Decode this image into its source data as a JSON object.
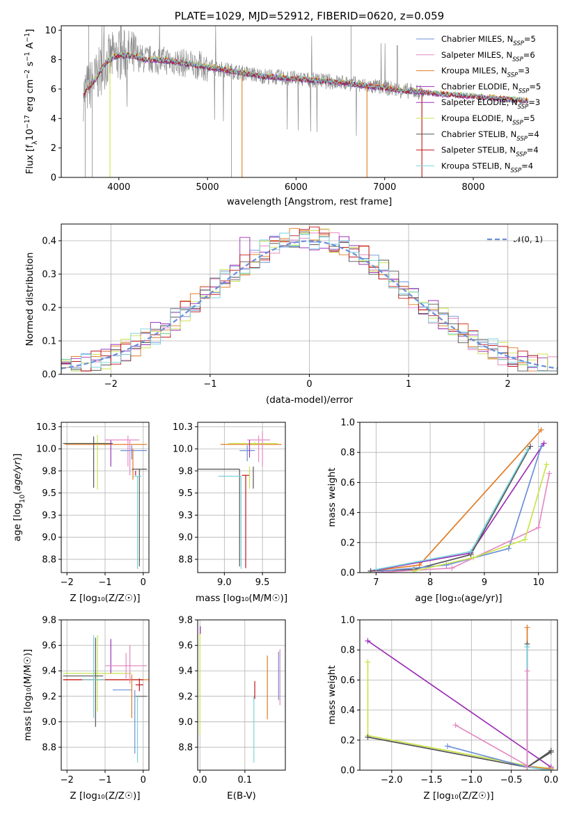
{
  "colors": {
    "chabrier_miles": "#6a8fd8",
    "salpeter_miles": "#e58ac4",
    "kroupa_miles": "#e07b22",
    "chabrier_elodie": "#9b2fb5",
    "salpeter_elodie": "#9b2fb5",
    "kroupa_elodie": "#c9e44a",
    "chabrier_stelib": "#555555",
    "salpeter_stelib": "#c0141c",
    "kroupa_stelib": "#79d2dc",
    "data": "#8a8a8a",
    "normal": "#6a8fd8"
  },
  "chart_data": [
    {
      "type": "line",
      "title": "PLATE=1029, MJD=52912, FIBERID=0620, z=0.059",
      "xlabel": "wavelength [Angstrom, rest frame]",
      "ylabel": "Flux [f_λ10^-17 erg cm^-2 s^-1 A^-1]",
      "xlim": [
        3350,
        8950
      ],
      "ylim": [
        0,
        10.3
      ],
      "xticks": [
        4000,
        5000,
        6000,
        7000,
        8000
      ],
      "yticks": [
        0,
        2,
        4,
        6,
        8,
        10
      ],
      "grid": false,
      "legend_position": "top-right",
      "series": [
        {
          "name": "Chabrier MILES, N_SSP=5",
          "color_key": "chabrier_miles"
        },
        {
          "name": "Salpeter MILES, N_SSP=6",
          "color_key": "salpeter_miles"
        },
        {
          "name": "Kroupa MILES, N_SSP=3",
          "color_key": "kroupa_miles"
        },
        {
          "name": "Chabrier ELODIE, N_SSP=5",
          "color_key": "chabrier_elodie"
        },
        {
          "name": "Salpeter ELODIE, N_SSP=3",
          "color_key": "salpeter_elodie"
        },
        {
          "name": "Kroupa ELODIE, N_SSP=5",
          "color_key": "kroupa_elodie"
        },
        {
          "name": "Chabrier STELIB, N_SSP=4",
          "color_key": "chabrier_stelib"
        },
        {
          "name": "Salpeter STELIB, N_SSP=4",
          "color_key": "salpeter_stelib"
        },
        {
          "name": "Kroupa STELIB, N_SSP=4",
          "color_key": "kroupa_stelib"
        }
      ],
      "continuum": {
        "x": [
          3600,
          3650,
          3700,
          3750,
          3800,
          3850,
          3900,
          3950,
          4000,
          4100,
          4200,
          4300,
          4400,
          4600,
          4800,
          5000,
          5200,
          5400,
          5600,
          5800,
          6000,
          6200,
          6400,
          6600,
          6800,
          7000,
          7200,
          7400,
          7600,
          7800,
          8000,
          8200,
          8400,
          8600
        ],
        "y": [
          5.6,
          6.1,
          6.4,
          6.8,
          7.3,
          7.8,
          8.0,
          8.2,
          8.3,
          8.3,
          8.2,
          8.0,
          8.0,
          7.9,
          7.7,
          7.5,
          7.3,
          7.1,
          6.9,
          6.8,
          6.7,
          6.6,
          6.5,
          6.4,
          6.2,
          6.1,
          5.9,
          5.8,
          5.7,
          5.6,
          5.5,
          5.4,
          5.3,
          5.2
        ]
      },
      "data_spans": [
        3600,
        7450
      ],
      "model_spans": [
        3600,
        8620
      ]
    },
    {
      "type": "line",
      "xlabel": "(data-model)/error",
      "ylabel": "Normed distribution",
      "xlim": [
        -2.5,
        2.5
      ],
      "ylim": [
        0,
        0.45
      ],
      "xticks": [
        -2,
        -1,
        0,
        1,
        2
      ],
      "yticks": [
        0.0,
        0.1,
        0.2,
        0.3,
        0.4
      ],
      "grid": true,
      "legend_position": "top-right",
      "legend": [
        "𝒩(0, 1)"
      ],
      "bin_width": 0.1
    },
    {
      "type": "scatter",
      "xlabel": "Z [log10(Z/Z☉)]",
      "ylabel": "age [log10(age/yr)]",
      "xlim": [
        -2.15,
        0.15
      ],
      "ylim": [
        8.6,
        10.3
      ],
      "xticks": [
        -2,
        -1,
        0
      ],
      "yticks": [
        8.75,
        9.0,
        9.25,
        9.5,
        9.75,
        10.0,
        10.25
      ],
      "grid": true
    },
    {
      "type": "scatter",
      "xlabel": "mass [log10(M/M☉)]",
      "ylabel": "",
      "xlim": [
        8.65,
        9.8
      ],
      "ylim": [
        8.6,
        10.3
      ],
      "xticks": [
        9.0,
        9.5
      ],
      "yticks": [
        8.75,
        9.0,
        9.25,
        9.5,
        9.75,
        10.0,
        10.25
      ],
      "grid": true
    },
    {
      "type": "line",
      "xlabel": "age [log10(age/yr)]",
      "ylabel": "mass weight",
      "xlim": [
        6.7,
        10.35
      ],
      "ylim": [
        0,
        1.0
      ],
      "xticks": [
        7,
        8,
        9,
        10
      ],
      "yticks": [
        0.0,
        0.2,
        0.4,
        0.6,
        0.8,
        1.0
      ],
      "grid": true,
      "series": [
        {
          "color_key": "kroupa_miles",
          "x": [
            6.9,
            7.8,
            10.05
          ],
          "y": [
            0.01,
            0.05,
            0.95
          ]
        },
        {
          "color_key": "chabrier_elodie",
          "x": [
            6.9,
            8.75,
            10.1
          ],
          "y": [
            0.01,
            0.13,
            0.86
          ]
        },
        {
          "color_key": "chabrier_stelib",
          "x": [
            6.9,
            7.7,
            8.75,
            9.85
          ],
          "y": [
            0.01,
            0.02,
            0.12,
            0.84
          ]
        },
        {
          "color_key": "kroupa_stelib",
          "x": [
            7.0,
            8.75,
            9.8
          ],
          "y": [
            0.02,
            0.14,
            0.82
          ]
        },
        {
          "color_key": "chabrier_miles",
          "x": [
            7.1,
            8.3,
            9.45,
            10.05
          ],
          "y": [
            0.01,
            0.05,
            0.16,
            0.84
          ]
        },
        {
          "color_key": "salpeter_miles",
          "x": [
            7.0,
            8.4,
            10.0,
            10.2
          ],
          "y": [
            0.0,
            0.03,
            0.3,
            0.66
          ]
        },
        {
          "color_key": "kroupa_elodie",
          "x": [
            7.7,
            8.8,
            9.75,
            10.15
          ],
          "y": [
            0.01,
            0.1,
            0.22,
            0.72
          ]
        }
      ]
    },
    {
      "type": "scatter",
      "xlabel": "Z [log10(Z/Z☉)]",
      "ylabel": "mass [log10(M/M☉)]",
      "xlim": [
        -2.15,
        0.15
      ],
      "ylim": [
        8.62,
        9.8
      ],
      "xticks": [
        -2,
        -1,
        0
      ],
      "yticks": [
        8.8,
        9.0,
        9.2,
        9.4,
        9.6,
        9.8
      ],
      "grid": true
    },
    {
      "type": "scatter",
      "xlabel": "E(B-V)",
      "ylabel": "",
      "xlim": [
        -0.005,
        0.19
      ],
      "ylim": [
        8.62,
        9.8
      ],
      "xticks": [
        0.0,
        0.1
      ],
      "yticks": [
        8.8,
        9.0,
        9.2,
        9.4,
        9.6,
        9.8
      ],
      "grid": true
    },
    {
      "type": "line",
      "xlabel": "Z [log10(Z/Z☉)]",
      "ylabel": "mass weight",
      "xlim": [
        -2.4,
        0.08
      ],
      "ylim": [
        0,
        1.0
      ],
      "xticks": [
        -2.0,
        -1.5,
        -1.0,
        -0.5,
        0.0
      ],
      "yticks": [
        0.0,
        0.2,
        0.4,
        0.6,
        0.8,
        1.0
      ],
      "grid": true,
      "series": [
        {
          "color_key": "chabrier_elodie",
          "x": [
            -2.3,
            0.0
          ],
          "y": [
            0.86,
            0.02
          ]
        },
        {
          "color_key": "kroupa_elodie",
          "x": [
            -2.3,
            -2.3,
            -0.3,
            0.0
          ],
          "y": [
            0.72,
            0.23,
            0.03,
            0.01
          ]
        },
        {
          "color_key": "chabrier_stelib",
          "x": [
            -2.3,
            -0.3,
            0.0
          ],
          "y": [
            0.22,
            0.02,
            0.13
          ]
        },
        {
          "color_key": "chabrier_miles",
          "x": [
            -1.3,
            -0.3,
            0.0
          ],
          "y": [
            0.16,
            0.02,
            0.0
          ]
        },
        {
          "color_key": "salpeter_miles",
          "x": [
            -1.2,
            -0.3,
            0.0
          ],
          "y": [
            0.3,
            0.03,
            0.0
          ]
        },
        {
          "color_key": "kroupa_miles",
          "x": [
            -0.3,
            -0.3,
            0.0
          ],
          "y": [
            0.95,
            0.02,
            0.01
          ]
        },
        {
          "color_key": "chabrier_stelib",
          "x": [
            -0.3,
            -0.3,
            0.0
          ],
          "y": [
            0.84,
            0.02,
            0.12
          ]
        },
        {
          "color_key": "kroupa_stelib",
          "x": [
            -0.3,
            -0.3,
            0.0
          ],
          "y": [
            0.82,
            0.02,
            0.0
          ]
        },
        {
          "color_key": "salpeter_miles",
          "x": [
            -0.3,
            -0.3
          ],
          "y": [
            0.66,
            0.02
          ]
        }
      ]
    }
  ]
}
